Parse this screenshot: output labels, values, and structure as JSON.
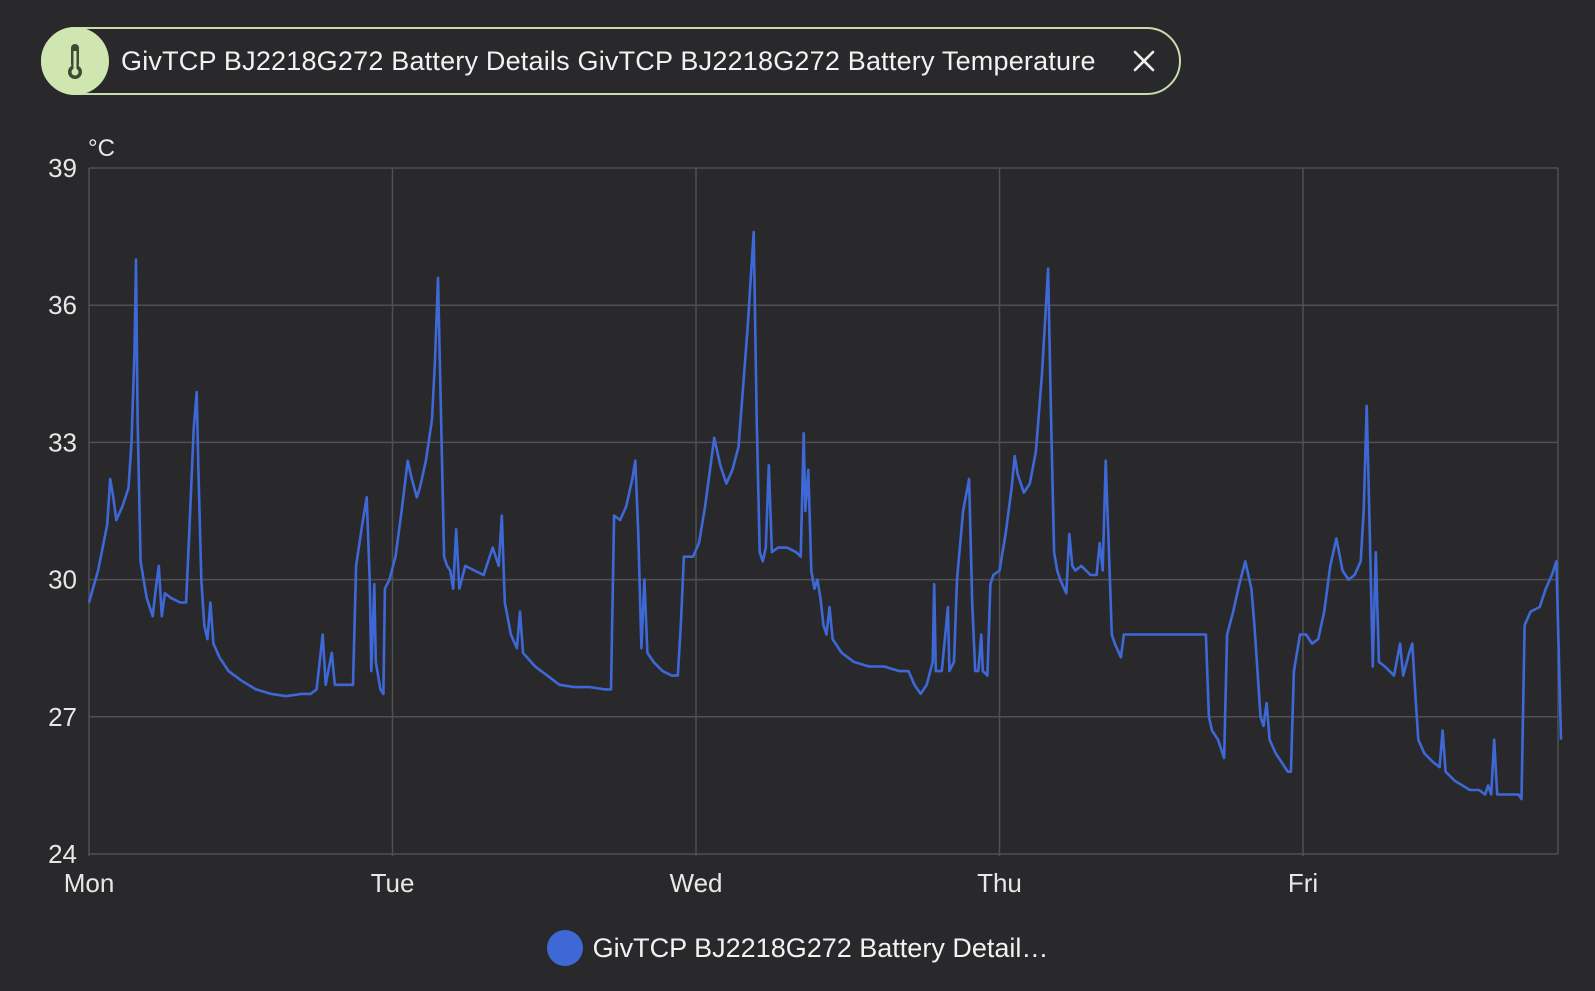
{
  "header_chip": {
    "label": "GivTCP BJ2218G272 Battery Details GivTCP BJ2218G272 Battery Temperature",
    "icon": "thermometer-icon",
    "close_icon": "close-icon",
    "icon_bg": "#cfe6b0",
    "border_color": "#c9dcae"
  },
  "chart_data": {
    "type": "line",
    "ylabel": "°C",
    "ylim": [
      24,
      39
    ],
    "yticks": [
      24,
      27,
      30,
      33,
      36,
      39
    ],
    "xlim": [
      0,
      4.85
    ],
    "xticks": [
      {
        "label": "Mon",
        "value": 0
      },
      {
        "label": "Tue",
        "value": 1
      },
      {
        "label": "Wed",
        "value": 2
      },
      {
        "label": "Thu",
        "value": 3
      },
      {
        "label": "Fri",
        "value": 4
      }
    ],
    "grid": true,
    "legend_position": "bottom-center",
    "series": [
      {
        "name": "GivTCP BJ2218G272 Battery Detail…",
        "color": "#3e68d6",
        "points": [
          [
            0.0,
            29.5
          ],
          [
            0.03,
            30.2
          ],
          [
            0.06,
            31.2
          ],
          [
            0.07,
            32.2
          ],
          [
            0.08,
            31.8
          ],
          [
            0.09,
            31.3
          ],
          [
            0.11,
            31.6
          ],
          [
            0.13,
            32.0
          ],
          [
            0.14,
            33.0
          ],
          [
            0.15,
            35.0
          ],
          [
            0.155,
            37.0
          ],
          [
            0.16,
            33.5
          ],
          [
            0.17,
            30.4
          ],
          [
            0.18,
            30.0
          ],
          [
            0.19,
            29.6
          ],
          [
            0.21,
            29.2
          ],
          [
            0.22,
            29.8
          ],
          [
            0.23,
            30.3
          ],
          [
            0.24,
            29.2
          ],
          [
            0.25,
            29.7
          ],
          [
            0.27,
            29.6
          ],
          [
            0.3,
            29.5
          ],
          [
            0.32,
            29.5
          ],
          [
            0.33,
            31.0
          ],
          [
            0.345,
            33.3
          ],
          [
            0.355,
            34.1
          ],
          [
            0.36,
            32.5
          ],
          [
            0.37,
            30.0
          ],
          [
            0.38,
            29.0
          ],
          [
            0.39,
            28.7
          ],
          [
            0.4,
            29.5
          ],
          [
            0.41,
            28.6
          ],
          [
            0.43,
            28.3
          ],
          [
            0.46,
            28.0
          ],
          [
            0.5,
            27.8
          ],
          [
            0.55,
            27.6
          ],
          [
            0.6,
            27.5
          ],
          [
            0.65,
            27.45
          ],
          [
            0.7,
            27.5
          ],
          [
            0.73,
            27.5
          ],
          [
            0.75,
            27.6
          ],
          [
            0.77,
            28.8
          ],
          [
            0.78,
            27.7
          ],
          [
            0.8,
            28.4
          ],
          [
            0.81,
            27.7
          ],
          [
            0.85,
            27.7
          ],
          [
            0.87,
            27.7
          ],
          [
            0.88,
            30.3
          ],
          [
            0.9,
            31.2
          ],
          [
            0.915,
            31.8
          ],
          [
            0.925,
            30.0
          ],
          [
            0.93,
            28.0
          ],
          [
            0.94,
            29.9
          ],
          [
            0.945,
            28.2
          ],
          [
            0.96,
            27.6
          ],
          [
            0.97,
            27.5
          ],
          [
            0.975,
            29.8
          ],
          [
            0.99,
            30.0
          ],
          [
            1.01,
            30.5
          ],
          [
            1.03,
            31.5
          ],
          [
            1.05,
            32.6
          ],
          [
            1.06,
            32.3
          ],
          [
            1.08,
            31.8
          ],
          [
            1.09,
            32.0
          ],
          [
            1.11,
            32.6
          ],
          [
            1.13,
            33.5
          ],
          [
            1.14,
            34.8
          ],
          [
            1.15,
            36.6
          ],
          [
            1.16,
            33.5
          ],
          [
            1.17,
            30.5
          ],
          [
            1.18,
            30.3
          ],
          [
            1.19,
            30.2
          ],
          [
            1.2,
            29.8
          ],
          [
            1.21,
            31.1
          ],
          [
            1.22,
            29.8
          ],
          [
            1.24,
            30.3
          ],
          [
            1.27,
            30.2
          ],
          [
            1.3,
            30.1
          ],
          [
            1.33,
            30.7
          ],
          [
            1.35,
            30.3
          ],
          [
            1.36,
            31.4
          ],
          [
            1.37,
            29.5
          ],
          [
            1.39,
            28.8
          ],
          [
            1.41,
            28.5
          ],
          [
            1.42,
            29.3
          ],
          [
            1.43,
            28.4
          ],
          [
            1.47,
            28.1
          ],
          [
            1.51,
            27.9
          ],
          [
            1.55,
            27.7
          ],
          [
            1.6,
            27.65
          ],
          [
            1.65,
            27.65
          ],
          [
            1.7,
            27.6
          ],
          [
            1.72,
            27.6
          ],
          [
            1.73,
            31.4
          ],
          [
            1.75,
            31.3
          ],
          [
            1.77,
            31.6
          ],
          [
            1.79,
            32.2
          ],
          [
            1.8,
            32.6
          ],
          [
            1.81,
            31.0
          ],
          [
            1.82,
            28.5
          ],
          [
            1.83,
            30.0
          ],
          [
            1.84,
            28.4
          ],
          [
            1.86,
            28.2
          ],
          [
            1.89,
            28.0
          ],
          [
            1.92,
            27.9
          ],
          [
            1.94,
            27.9
          ],
          [
            1.95,
            29.0
          ],
          [
            1.96,
            30.5
          ],
          [
            1.99,
            30.5
          ],
          [
            2.01,
            30.8
          ],
          [
            2.03,
            31.6
          ],
          [
            2.05,
            32.6
          ],
          [
            2.06,
            33.1
          ],
          [
            2.08,
            32.5
          ],
          [
            2.1,
            32.1
          ],
          [
            2.12,
            32.4
          ],
          [
            2.14,
            32.9
          ],
          [
            2.17,
            35.5
          ],
          [
            2.19,
            37.6
          ],
          [
            2.2,
            33.5
          ],
          [
            2.21,
            30.6
          ],
          [
            2.22,
            30.4
          ],
          [
            2.23,
            30.7
          ],
          [
            2.24,
            32.5
          ],
          [
            2.25,
            30.6
          ],
          [
            2.27,
            30.7
          ],
          [
            2.3,
            30.7
          ],
          [
            2.33,
            30.6
          ],
          [
            2.345,
            30.5
          ],
          [
            2.355,
            33.2
          ],
          [
            2.36,
            31.5
          ],
          [
            2.37,
            32.4
          ],
          [
            2.38,
            30.2
          ],
          [
            2.39,
            29.8
          ],
          [
            2.4,
            30.0
          ],
          [
            2.41,
            29.6
          ],
          [
            2.42,
            29.0
          ],
          [
            2.43,
            28.8
          ],
          [
            2.44,
            29.4
          ],
          [
            2.45,
            28.7
          ],
          [
            2.48,
            28.4
          ],
          [
            2.52,
            28.2
          ],
          [
            2.57,
            28.1
          ],
          [
            2.62,
            28.1
          ],
          [
            2.67,
            28.0
          ],
          [
            2.7,
            28.0
          ],
          [
            2.72,
            27.7
          ],
          [
            2.74,
            27.5
          ],
          [
            2.76,
            27.7
          ],
          [
            2.78,
            28.2
          ],
          [
            2.785,
            29.9
          ],
          [
            2.79,
            28.0
          ],
          [
            2.81,
            28.0
          ],
          [
            2.83,
            29.4
          ],
          [
            2.835,
            28.0
          ],
          [
            2.85,
            28.2
          ],
          [
            2.86,
            30.0
          ],
          [
            2.88,
            31.5
          ],
          [
            2.9,
            32.2
          ],
          [
            2.91,
            29.5
          ],
          [
            2.92,
            28.0
          ],
          [
            2.93,
            28.0
          ],
          [
            2.94,
            28.8
          ],
          [
            2.945,
            28.0
          ],
          [
            2.96,
            27.9
          ],
          [
            2.97,
            29.9
          ],
          [
            2.98,
            30.1
          ],
          [
            3.0,
            30.2
          ],
          [
            3.02,
            31.0
          ],
          [
            3.04,
            32.0
          ],
          [
            3.05,
            32.7
          ],
          [
            3.06,
            32.3
          ],
          [
            3.08,
            31.9
          ],
          [
            3.1,
            32.1
          ],
          [
            3.12,
            32.8
          ],
          [
            3.14,
            34.5
          ],
          [
            3.16,
            36.8
          ],
          [
            3.17,
            33.5
          ],
          [
            3.18,
            30.6
          ],
          [
            3.19,
            30.2
          ],
          [
            3.2,
            30.0
          ],
          [
            3.22,
            29.7
          ],
          [
            3.23,
            31.0
          ],
          [
            3.24,
            30.3
          ],
          [
            3.25,
            30.2
          ],
          [
            3.27,
            30.3
          ],
          [
            3.3,
            30.1
          ],
          [
            3.32,
            30.1
          ],
          [
            3.33,
            30.8
          ],
          [
            3.34,
            30.2
          ],
          [
            3.35,
            32.6
          ],
          [
            3.36,
            30.7
          ],
          [
            3.37,
            28.8
          ],
          [
            3.38,
            28.6
          ],
          [
            3.4,
            28.3
          ],
          [
            3.41,
            28.8
          ],
          [
            3.45,
            28.8
          ],
          [
            3.55,
            28.8
          ],
          [
            3.65,
            28.8
          ],
          [
            3.68,
            28.8
          ],
          [
            3.69,
            27.0
          ],
          [
            3.7,
            26.7
          ],
          [
            3.72,
            26.5
          ],
          [
            3.74,
            26.1
          ],
          [
            3.75,
            28.8
          ],
          [
            3.77,
            29.3
          ],
          [
            3.79,
            29.9
          ],
          [
            3.81,
            30.4
          ],
          [
            3.83,
            29.8
          ],
          [
            3.84,
            29.0
          ],
          [
            3.85,
            28.0
          ],
          [
            3.86,
            27.0
          ],
          [
            3.87,
            26.8
          ],
          [
            3.88,
            27.3
          ],
          [
            3.89,
            26.5
          ],
          [
            3.91,
            26.2
          ],
          [
            3.93,
            26.0
          ],
          [
            3.95,
            25.8
          ],
          [
            3.96,
            25.8
          ],
          [
            3.97,
            28.0
          ],
          [
            3.99,
            28.8
          ],
          [
            4.01,
            28.8
          ],
          [
            4.03,
            28.6
          ],
          [
            4.05,
            28.7
          ],
          [
            4.07,
            29.3
          ],
          [
            4.09,
            30.3
          ],
          [
            4.11,
            30.9
          ],
          [
            4.13,
            30.2
          ],
          [
            4.15,
            30.0
          ],
          [
            4.17,
            30.1
          ],
          [
            4.19,
            30.4
          ],
          [
            4.2,
            31.5
          ],
          [
            4.21,
            33.8
          ],
          [
            4.22,
            31.0
          ],
          [
            4.23,
            28.1
          ],
          [
            4.24,
            30.6
          ],
          [
            4.25,
            28.2
          ],
          [
            4.27,
            28.1
          ],
          [
            4.3,
            27.9
          ],
          [
            4.32,
            28.6
          ],
          [
            4.33,
            27.9
          ],
          [
            4.35,
            28.4
          ],
          [
            4.36,
            28.6
          ],
          [
            4.37,
            27.5
          ],
          [
            4.38,
            26.5
          ],
          [
            4.4,
            26.2
          ],
          [
            4.43,
            26.0
          ],
          [
            4.45,
            25.9
          ],
          [
            4.46,
            26.7
          ],
          [
            4.47,
            25.8
          ],
          [
            4.5,
            25.6
          ],
          [
            4.55,
            25.4
          ],
          [
            4.58,
            25.4
          ],
          [
            4.6,
            25.3
          ],
          [
            4.61,
            25.5
          ],
          [
            4.62,
            25.3
          ],
          [
            4.63,
            26.5
          ],
          [
            4.64,
            25.3
          ],
          [
            4.68,
            25.3
          ],
          [
            4.71,
            25.3
          ],
          [
            4.72,
            25.2
          ],
          [
            4.73,
            29.0
          ],
          [
            4.75,
            29.3
          ],
          [
            4.78,
            29.4
          ],
          [
            4.8,
            29.8
          ],
          [
            4.82,
            30.1
          ],
          [
            4.835,
            30.4
          ],
          [
            4.85,
            26.5
          ]
        ]
      }
    ]
  }
}
